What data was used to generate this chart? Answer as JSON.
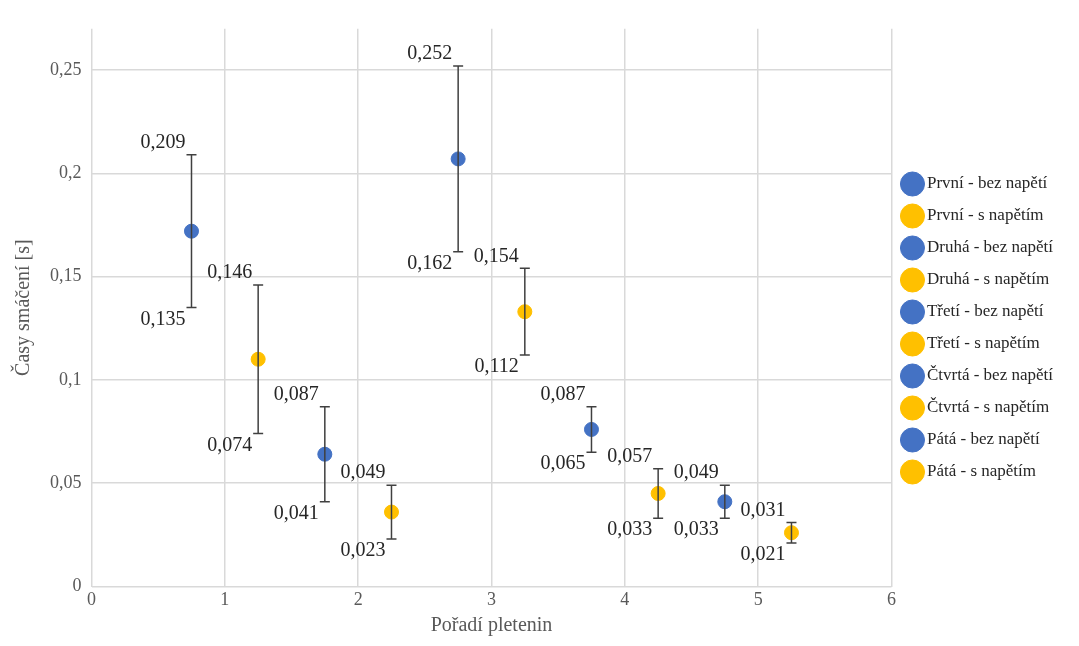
{
  "chart_data": {
    "type": "scatter",
    "xlabel": "Pořadí pletenin",
    "ylabel": "Časy smáčení [s]",
    "xlim": [
      0,
      6
    ],
    "xticks": [
      0,
      1,
      2,
      3,
      4,
      5,
      6
    ],
    "ylim": [
      0,
      0.27
    ],
    "yticks": [
      0,
      {
        "value": 0.05,
        "label": "0,05"
      },
      {
        "value": 0.1,
        "label": "0,1"
      },
      {
        "value": 0.15,
        "label": "0,15"
      },
      {
        "value": 0.2,
        "label": "0,2"
      },
      {
        "value": 0.25,
        "label": "0,25"
      }
    ],
    "grid": true,
    "legend": "right",
    "marker": "circle",
    "series": [
      {
        "name": "První - bez napětí",
        "color": "#4472c4",
        "x": [
          0.75
        ],
        "values": [
          0.172
        ],
        "errors": [
          [
            0.135,
            0.209
          ]
        ]
      },
      {
        "name": "První - s napětím",
        "color": "#ffc000",
        "x": [
          1.25
        ],
        "values": [
          0.11
        ],
        "errors": [
          [
            0.074,
            0.146
          ]
        ]
      },
      {
        "name": "Druhá - bez napětí",
        "color": "#4472c4",
        "x": [
          1.75
        ],
        "values": [
          0.064
        ],
        "errors": [
          [
            0.041,
            0.087
          ]
        ]
      },
      {
        "name": "Druhá - s napětím",
        "color": "#ffc000",
        "x": [
          2.25
        ],
        "values": [
          0.036
        ],
        "errors": [
          [
            0.023,
            0.049
          ]
        ]
      },
      {
        "name": "Třetí - bez napětí",
        "color": "#4472c4",
        "x": [
          2.75
        ],
        "values": [
          0.207
        ],
        "errors": [
          [
            0.162,
            0.252
          ]
        ]
      },
      {
        "name": "Třetí - s napětím",
        "color": "#ffc000",
        "x": [
          3.25
        ],
        "values": [
          0.133
        ],
        "errors": [
          [
            0.112,
            0.154
          ]
        ]
      },
      {
        "name": "Čtvrtá - bez napětí",
        "color": "#4472c4",
        "x": [
          3.75
        ],
        "values": [
          0.076
        ],
        "errors": [
          [
            0.065,
            0.087
          ]
        ]
      },
      {
        "name": "Čtvrtá - s napětím",
        "color": "#ffc000",
        "x": [
          4.25
        ],
        "values": [
          0.045
        ],
        "errors": [
          [
            0.033,
            0.057
          ]
        ]
      },
      {
        "name": "Pátá - bez napětí",
        "color": "#4472c4",
        "x": [
          4.75
        ],
        "values": [
          0.041
        ],
        "errors": [
          [
            0.033,
            0.049
          ]
        ]
      },
      {
        "name": "Pátá - s napětím",
        "color": "#ffc000",
        "x": [
          5.25
        ],
        "values": [
          0.026
        ],
        "errors": [
          [
            0.021,
            0.031
          ]
        ]
      }
    ],
    "annotations": [
      {
        "text": "0,209",
        "x": 0.75,
        "y": 0.209
      },
      {
        "text": "0,135",
        "x": 0.75,
        "y": 0.135
      },
      {
        "text": "0,146",
        "x": 1.25,
        "y": 0.146
      },
      {
        "text": "0,074",
        "x": 1.25,
        "y": 0.074
      },
      {
        "text": "0,087",
        "x": 1.75,
        "y": 0.087
      },
      {
        "text": "0,041",
        "x": 1.75,
        "y": 0.041
      },
      {
        "text": "0,049",
        "x": 2.25,
        "y": 0.049
      },
      {
        "text": "0,023",
        "x": 2.25,
        "y": 0.023
      },
      {
        "text": "0,252",
        "x": 2.75,
        "y": 0.252
      },
      {
        "text": "0,162",
        "x": 2.75,
        "y": 0.162
      },
      {
        "text": "0,154",
        "x": 3.25,
        "y": 0.154
      },
      {
        "text": "0,112",
        "x": 3.25,
        "y": 0.112
      },
      {
        "text": "0,087",
        "x": 3.75,
        "y": 0.087
      },
      {
        "text": "0,065",
        "x": 3.75,
        "y": 0.065
      },
      {
        "text": "0,057",
        "x": 4.25,
        "y": 0.057
      },
      {
        "text": "0,033",
        "x": 4.25,
        "y": 0.033
      },
      {
        "text": "0,049",
        "x": 4.75,
        "y": 0.049
      },
      {
        "text": "0,033",
        "x": 4.75,
        "y": 0.033
      },
      {
        "text": "0,031",
        "x": 5.25,
        "y": 0.031
      },
      {
        "text": "0,021",
        "x": 5.25,
        "y": 0.021
      }
    ]
  }
}
